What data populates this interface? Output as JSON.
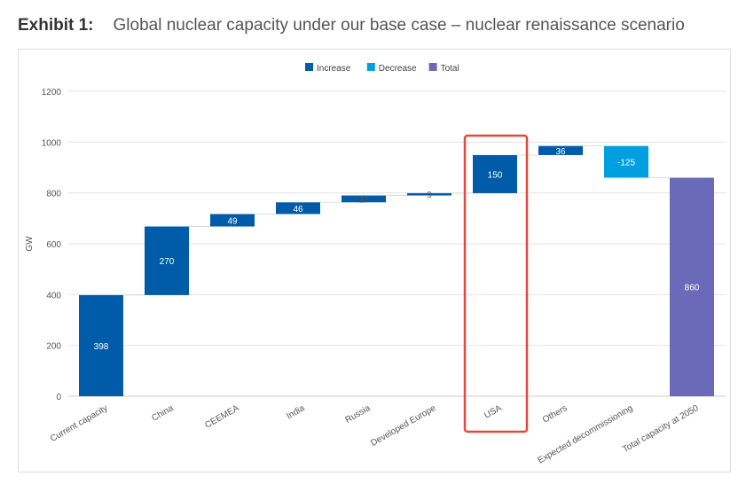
{
  "header": {
    "exhibit": "Exhibit 1:",
    "title": "Global nuclear capacity under our base case – nuclear renaissance scenario"
  },
  "chart_data": {
    "type": "waterfall",
    "categories": [
      "Current capacity",
      "China",
      "CEEMEA",
      "India",
      "Russia",
      "Developed Europe",
      "USA",
      "Others",
      "Expected decommissioning",
      "Total capacity at 2050"
    ],
    "values": [
      398,
      270,
      49,
      46,
      27,
      9,
      150,
      36,
      -125,
      860
    ],
    "kinds": [
      "Increase",
      "Increase",
      "Increase",
      "Increase",
      "Increase",
      "Increase",
      "Increase",
      "Increase",
      "Decrease",
      "Total"
    ],
    "value_labels": [
      "398",
      "270",
      "49",
      "46",
      "27",
      "9",
      "150",
      "36",
      "-125",
      "860"
    ],
    "legend": [
      {
        "name": "Increase",
        "color": "#005ca8"
      },
      {
        "name": "Decrease",
        "color": "#00a0e0"
      },
      {
        "name": "Total",
        "color": "#6a6ab8"
      }
    ],
    "legend_position": "top",
    "ylabel": "GW",
    "xlabel": "",
    "ylim": [
      0,
      1200
    ],
    "yticks": [
      "0",
      "200",
      "400",
      "600",
      "800",
      "1000",
      "1200"
    ],
    "grid": true,
    "highlight": {
      "category": "USA",
      "color": "#e8483c"
    }
  }
}
